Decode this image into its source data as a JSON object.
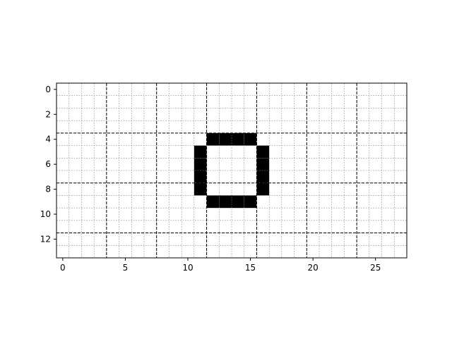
{
  "chart_data": {
    "type": "heatmap",
    "title": "",
    "xlabel": "",
    "ylabel": "",
    "rows": 14,
    "cols": 28,
    "xlim": [
      -0.5,
      27.5
    ],
    "ylim": [
      13.5,
      -0.5
    ],
    "xticks": [
      0,
      5,
      10,
      15,
      20,
      25
    ],
    "yticks": [
      0,
      2,
      4,
      6,
      8,
      10,
      12
    ],
    "xtick_labels": [
      "0",
      "5",
      "10",
      "15",
      "20",
      "25"
    ],
    "ytick_labels": [
      "0",
      "2",
      "4",
      "6",
      "8",
      "10",
      "12"
    ],
    "minor_grid": true,
    "major_grid_x_boundaries": [
      3.5,
      7.5,
      11.5,
      15.5,
      19.5,
      23.5
    ],
    "major_grid_y_boundaries": [
      3.5,
      7.5,
      11.5
    ],
    "filled_cells": [
      [
        4,
        12
      ],
      [
        4,
        13
      ],
      [
        4,
        14
      ],
      [
        4,
        15
      ],
      [
        5,
        11
      ],
      [
        5,
        16
      ],
      [
        6,
        11
      ],
      [
        6,
        16
      ],
      [
        7,
        11
      ],
      [
        7,
        16
      ],
      [
        8,
        11
      ],
      [
        8,
        16
      ],
      [
        9,
        12
      ],
      [
        9,
        13
      ],
      [
        9,
        14
      ],
      [
        9,
        15
      ]
    ],
    "fill_color": "#000000",
    "background_color": "#ffffff",
    "minor_grid_color": "#808080",
    "major_grid_color": "#000000"
  }
}
